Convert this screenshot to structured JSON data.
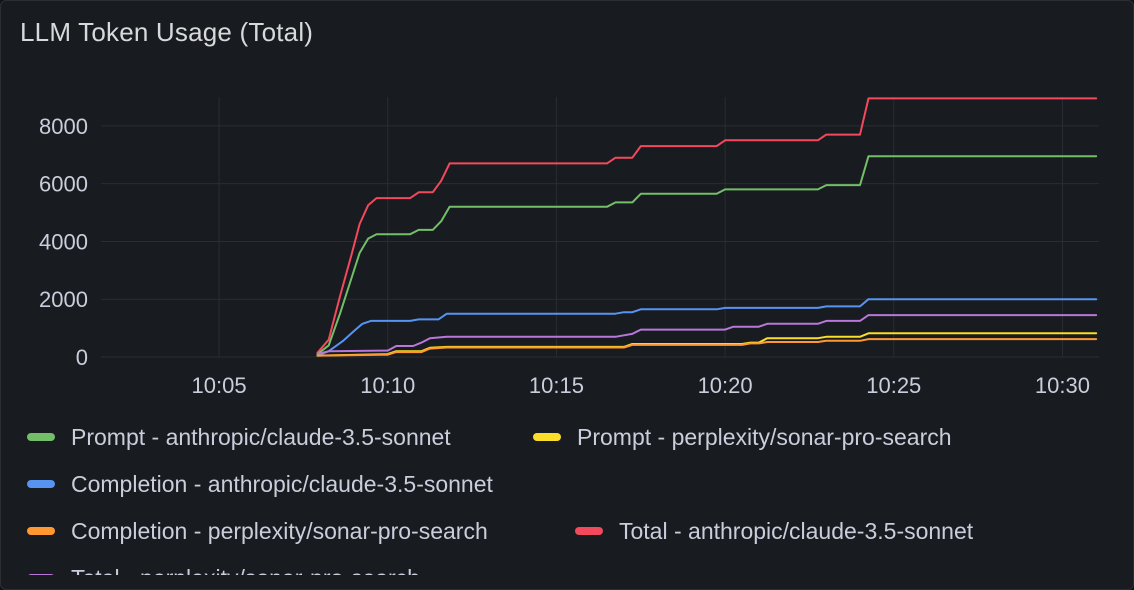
{
  "panel": {
    "title": "LLM Token Usage (Total)"
  },
  "chart_data": {
    "type": "line",
    "title": "LLM Token Usage (Total)",
    "xlabel": "",
    "ylabel": "",
    "ylim": [
      0,
      9000
    ],
    "y_ticks": [
      0,
      2000,
      4000,
      6000,
      8000
    ],
    "x_range": [
      "10:01:30",
      "10:31:05"
    ],
    "x_ticks": [
      "10:05",
      "10:10",
      "10:15",
      "10:20",
      "10:25",
      "10:30"
    ],
    "grid": true,
    "legend_position": "bottom",
    "series": [
      {
        "name": "Prompt - anthropic/claude-3.5-sonnet",
        "color": "#73bf69",
        "points": [
          [
            "10:07:55",
            100
          ],
          [
            "10:08:15",
            400
          ],
          [
            "10:08:35",
            1500
          ],
          [
            "10:08:55",
            2700
          ],
          [
            "10:09:10",
            3600
          ],
          [
            "10:09:25",
            4100
          ],
          [
            "10:09:40",
            4250
          ],
          [
            "10:10:40",
            4250
          ],
          [
            "10:10:55",
            4400
          ],
          [
            "10:11:20",
            4400
          ],
          [
            "10:11:35",
            4700
          ],
          [
            "10:11:50",
            5200
          ],
          [
            "10:16:30",
            5200
          ],
          [
            "10:16:45",
            5350
          ],
          [
            "10:17:15",
            5350
          ],
          [
            "10:17:30",
            5650
          ],
          [
            "10:19:45",
            5650
          ],
          [
            "10:20:00",
            5800
          ],
          [
            "10:22:45",
            5800
          ],
          [
            "10:23:00",
            5950
          ],
          [
            "10:24:00",
            5950
          ],
          [
            "10:24:15",
            6950
          ],
          [
            "10:31:00",
            6950
          ]
        ]
      },
      {
        "name": "Prompt - perplexity/sonar-pro-search",
        "color": "#fade2a",
        "points": [
          [
            "10:07:55",
            50
          ],
          [
            "10:10:00",
            100
          ],
          [
            "10:10:15",
            200
          ],
          [
            "10:11:00",
            200
          ],
          [
            "10:11:15",
            320
          ],
          [
            "10:11:45",
            350
          ],
          [
            "10:17:00",
            350
          ],
          [
            "10:17:15",
            450
          ],
          [
            "10:20:30",
            450
          ],
          [
            "10:20:45",
            500
          ],
          [
            "10:21:00",
            500
          ],
          [
            "10:21:15",
            650
          ],
          [
            "10:22:45",
            650
          ],
          [
            "10:23:00",
            700
          ],
          [
            "10:24:00",
            700
          ],
          [
            "10:24:15",
            820
          ],
          [
            "10:31:00",
            820
          ]
        ]
      },
      {
        "name": "Completion - anthropic/claude-3.5-sonnet",
        "color": "#5794f2",
        "points": [
          [
            "10:07:55",
            50
          ],
          [
            "10:08:15",
            200
          ],
          [
            "10:08:40",
            550
          ],
          [
            "10:09:00",
            900
          ],
          [
            "10:09:15",
            1150
          ],
          [
            "10:09:30",
            1250
          ],
          [
            "10:10:40",
            1250
          ],
          [
            "10:10:55",
            1300
          ],
          [
            "10:11:30",
            1300
          ],
          [
            "10:11:45",
            1500
          ],
          [
            "10:16:45",
            1500
          ],
          [
            "10:17:00",
            1550
          ],
          [
            "10:17:15",
            1550
          ],
          [
            "10:17:30",
            1650
          ],
          [
            "10:19:45",
            1650
          ],
          [
            "10:20:00",
            1700
          ],
          [
            "10:22:45",
            1700
          ],
          [
            "10:23:00",
            1750
          ],
          [
            "10:24:00",
            1750
          ],
          [
            "10:24:15",
            2000
          ],
          [
            "10:31:00",
            2000
          ]
        ]
      },
      {
        "name": "Completion - perplexity/sonar-pro-search",
        "color": "#ff9830",
        "points": [
          [
            "10:07:55",
            50
          ],
          [
            "10:10:00",
            80
          ],
          [
            "10:10:15",
            170
          ],
          [
            "10:11:00",
            170
          ],
          [
            "10:11:15",
            290
          ],
          [
            "10:11:45",
            330
          ],
          [
            "10:17:00",
            330
          ],
          [
            "10:17:15",
            420
          ],
          [
            "10:20:30",
            420
          ],
          [
            "10:20:45",
            470
          ],
          [
            "10:21:00",
            470
          ],
          [
            "10:21:15",
            520
          ],
          [
            "10:22:45",
            520
          ],
          [
            "10:23:00",
            560
          ],
          [
            "10:24:00",
            560
          ],
          [
            "10:24:15",
            620
          ],
          [
            "10:31:00",
            620
          ]
        ]
      },
      {
        "name": "Total - anthropic/claude-3.5-sonnet",
        "color": "#f2495c",
        "points": [
          [
            "10:07:55",
            150
          ],
          [
            "10:08:15",
            600
          ],
          [
            "10:08:35",
            2100
          ],
          [
            "10:08:55",
            3500
          ],
          [
            "10:09:10",
            4600
          ],
          [
            "10:09:25",
            5250
          ],
          [
            "10:09:40",
            5500
          ],
          [
            "10:10:40",
            5500
          ],
          [
            "10:10:55",
            5700
          ],
          [
            "10:11:20",
            5700
          ],
          [
            "10:11:35",
            6100
          ],
          [
            "10:11:50",
            6700
          ],
          [
            "10:16:30",
            6700
          ],
          [
            "10:16:45",
            6900
          ],
          [
            "10:17:15",
            6900
          ],
          [
            "10:17:30",
            7300
          ],
          [
            "10:19:45",
            7300
          ],
          [
            "10:20:00",
            7500
          ],
          [
            "10:22:45",
            7500
          ],
          [
            "10:23:00",
            7700
          ],
          [
            "10:24:00",
            7700
          ],
          [
            "10:24:15",
            8950
          ],
          [
            "10:31:00",
            8950
          ]
        ]
      },
      {
        "name": "Total - perplexity/sonar-pro-search",
        "color": "#b877d9",
        "points": [
          [
            "10:07:55",
            100
          ],
          [
            "10:08:15",
            200
          ],
          [
            "10:10:00",
            220
          ],
          [
            "10:10:15",
            380
          ],
          [
            "10:10:45",
            380
          ],
          [
            "10:11:00",
            500
          ],
          [
            "10:11:15",
            650
          ],
          [
            "10:11:45",
            700
          ],
          [
            "10:16:45",
            700
          ],
          [
            "10:17:00",
            750
          ],
          [
            "10:17:15",
            800
          ],
          [
            "10:17:30",
            950
          ],
          [
            "10:20:00",
            950
          ],
          [
            "10:20:15",
            1050
          ],
          [
            "10:21:00",
            1050
          ],
          [
            "10:21:15",
            1150
          ],
          [
            "10:22:45",
            1150
          ],
          [
            "10:23:00",
            1250
          ],
          [
            "10:24:00",
            1250
          ],
          [
            "10:24:15",
            1450
          ],
          [
            "10:31:00",
            1450
          ]
        ]
      }
    ]
  }
}
